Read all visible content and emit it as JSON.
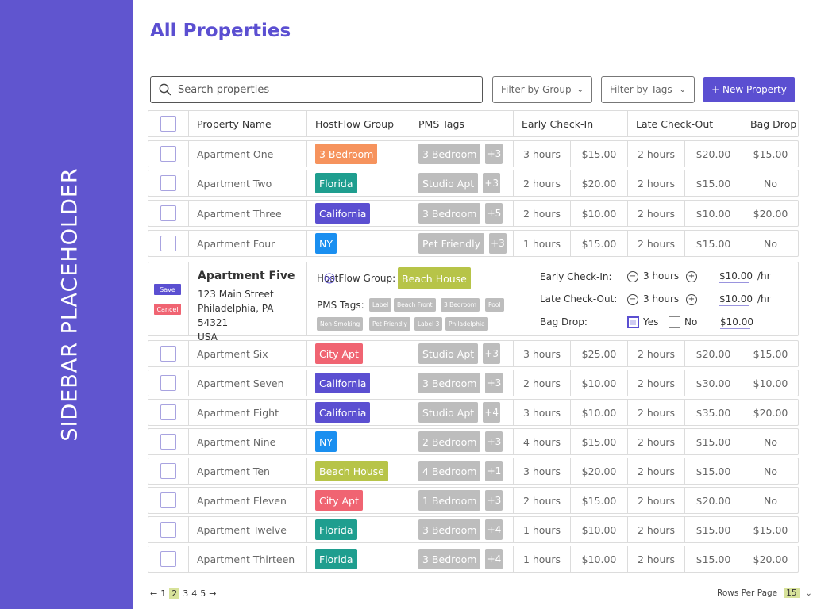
{
  "sidebar": {
    "text": "SIDEBAR PLACEHOLDER"
  },
  "page": {
    "title": "All Properties"
  },
  "toolbar": {
    "search_placeholder": "Search properties",
    "filter_group": "Filter by Group",
    "filter_tags": "Filter by Tags",
    "new_property": "+ New Property"
  },
  "columns": {
    "name": "Property Name",
    "group": "HostFlow Group",
    "tags": "PMS Tags",
    "early": "Early Check-In",
    "late": "Late Check-Out",
    "bag": "Bag Drop"
  },
  "colors": {
    "accent": "#5b4fd1",
    "sidebar": "#6055cf",
    "3 Bedroom": "#f6935d",
    "Florida": "#1f9e8f",
    "California": "#5b4fd1",
    "NY": "#1a8ff0",
    "City Apt": "#f06472",
    "Beach House": "#b7c448",
    "tag": "#bdbdbd"
  },
  "rows": [
    {
      "name": "Apartment One",
      "group": "3 Bedroom",
      "tag": "3 Bedroom",
      "more": "+3",
      "early_hours": "3 hours",
      "early_price": "$15.00",
      "late_hours": "2 hours",
      "late_price": "$20.00",
      "bag": "$15.00"
    },
    {
      "name": "Apartment Two",
      "group": "Florida",
      "tag": "Studio Apt",
      "more": "+3",
      "early_hours": "2 hours",
      "early_price": "$20.00",
      "late_hours": "2 hours",
      "late_price": "$15.00",
      "bag": "No"
    },
    {
      "name": "Apartment Three",
      "group": "California",
      "tag": "3 Bedroom",
      "more": "+5",
      "early_hours": "2 hours",
      "early_price": "$10.00",
      "late_hours": "2 hours",
      "late_price": "$10.00",
      "bag": "$20.00"
    },
    {
      "name": "Apartment Four",
      "group": "NY",
      "tag": "Pet Friendly",
      "more": "+3",
      "early_hours": "1 hours",
      "early_price": "$15.00",
      "late_hours": "2 hours",
      "late_price": "$15.00",
      "bag": "No"
    },
    {
      "name": "Apartment Six",
      "group": "City Apt",
      "tag": "Studio Apt",
      "more": "+3",
      "early_hours": "3 hours",
      "early_price": "$25.00",
      "late_hours": "2 hours",
      "late_price": "$20.00",
      "bag": "$15.00"
    },
    {
      "name": "Apartment Seven",
      "group": "California",
      "tag": "3 Bedroom",
      "more": "+3",
      "early_hours": "2 hours",
      "early_price": "$10.00",
      "late_hours": "2 hours",
      "late_price": "$30.00",
      "bag": "$10.00"
    },
    {
      "name": "Apartment Eight",
      "group": "California",
      "tag": "Studio Apt",
      "more": "+4",
      "early_hours": "3 hours",
      "early_price": "$10.00",
      "late_hours": "2 hours",
      "late_price": "$35.00",
      "bag": "$20.00"
    },
    {
      "name": "Apartment Nine",
      "group": "NY",
      "tag": "2 Bedroom",
      "more": "+3",
      "early_hours": "4 hours",
      "early_price": "$15.00",
      "late_hours": "2 hours",
      "late_price": "$15.00",
      "bag": "No"
    },
    {
      "name": "Apartment Ten",
      "group": "Beach House",
      "tag": "4 Bedroom",
      "more": "+1",
      "early_hours": "3 hours",
      "early_price": "$20.00",
      "late_hours": "2 hours",
      "late_price": "$15.00",
      "bag": "No"
    },
    {
      "name": "Apartment Eleven",
      "group": "City Apt",
      "tag": "1 Bedroom",
      "more": "+3",
      "early_hours": "2 hours",
      "early_price": "$15.00",
      "late_hours": "2 hours",
      "late_price": "$20.00",
      "bag": "No"
    },
    {
      "name": "Apartment Twelve",
      "group": "Florida",
      "tag": "3 Bedroom",
      "more": "+4",
      "early_hours": "1 hours",
      "early_price": "$10.00",
      "late_hours": "2 hours",
      "late_price": "$15.00",
      "bag": "$15.00"
    },
    {
      "name": "Apartment Thirteen",
      "group": "Florida",
      "tag": "3 Bedroom",
      "more": "+4",
      "early_hours": "1 hours",
      "early_price": "$10.00",
      "late_hours": "2 hours",
      "late_price": "$15.00",
      "bag": "$20.00"
    }
  ],
  "expanded": {
    "save": "Save",
    "cancel": "Cancel",
    "name": "Apartment Five",
    "address1": "123 Main Street",
    "address2": "Philadelphia, PA 54321",
    "address3": "USA",
    "group_label": "HostFlow Group:",
    "group": "Beach House",
    "pms_label": "PMS Tags:",
    "tags": [
      "Label",
      "Beach Front",
      "3 Bedroom",
      "Pool",
      "Non-Smoking",
      "Pet Friendly",
      "Label 3",
      "Philadelphia"
    ],
    "early_label": "Early Check-In:",
    "early_hours": "3 hours",
    "early_price": "$10.00",
    "late_label": "Late Check-Out:",
    "late_hours": "3 hours",
    "late_price": "$10.00",
    "unit": "/hr",
    "bag_label": "Bag Drop:",
    "bag_yes": "Yes",
    "bag_no": "No",
    "bag_price": "$10.00"
  },
  "pagination": {
    "prev": "←",
    "pages": [
      "1",
      "2",
      "3",
      "4",
      "5"
    ],
    "current": "2",
    "next": "→",
    "rows_label": "Rows Per Page",
    "rows_value": "15"
  }
}
